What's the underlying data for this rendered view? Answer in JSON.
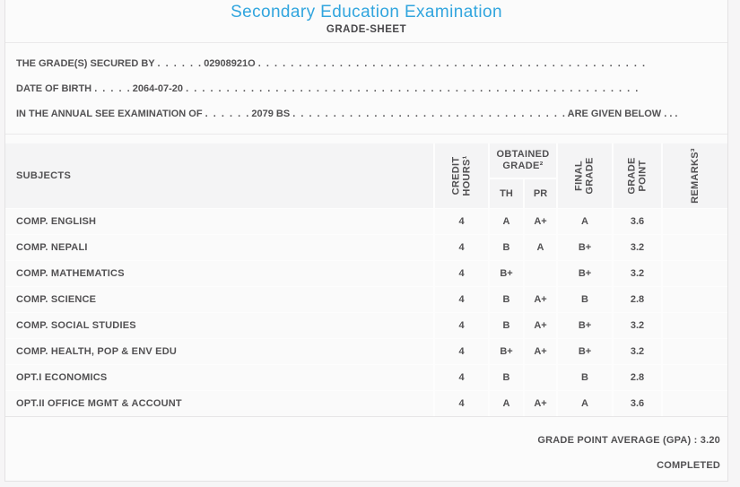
{
  "page": {
    "title": "Secondary Education Examination",
    "subtitle": "GRADE-SHEET"
  },
  "colors": {
    "accent_blue": "#31a5de",
    "text": "#525153",
    "panel_bg": "#fbfbfb",
    "header_cell_bg": "#f4f4f5",
    "row_bg": "#fafafa"
  },
  "info": {
    "lines": [
      {
        "label": "THE GRADE(S) SECURED BY",
        "leader1": ". . . . . .",
        "value": "02908921O",
        "leader2": ". . . . . . . . . . . . . . . . . . . . . . . . . . . . . . . . . . . . . . . . . . . . . . . .",
        "suffix": ""
      },
      {
        "label": "DATE OF BIRTH",
        "leader1": ". . . . .",
        "value": "2064-07-20",
        "leader2": ". . . . . . . . . . . . . . . . . . . . . . . . . . . . . . . . . . . . . . . . . . . . . . . . . . . . . . . .",
        "suffix": ""
      },
      {
        "label": "IN THE ANNUAL SEE EXAMINATION OF",
        "leader1": ". . . . . .",
        "value": "2079 BS",
        "leader2": ". . . . . . . . . . . . . . . . . . . . . . . . . . . . . . . . . .",
        "suffix": "ARE GIVEN BELOW . . ."
      }
    ]
  },
  "table": {
    "headers": {
      "subjects": "SUBJECTS",
      "credit_hours": {
        "line1": "CREDIT",
        "line2": "HOURS¹"
      },
      "obtained_grade": {
        "line1": "OBTAINED",
        "line2": "GRADE²",
        "sub_th": "TH",
        "sub_pr": "PR"
      },
      "final_grade": {
        "line1": "FINAL",
        "line2": "GRADE"
      },
      "grade_point": {
        "line1": "GRADE",
        "line2": "POINT"
      },
      "remarks": "REMARKS³"
    },
    "rows": [
      {
        "subject": "COMP. ENGLISH",
        "credit": "4",
        "th": "A",
        "pr": "A+",
        "final": "A",
        "gp": "3.6",
        "remarks": ""
      },
      {
        "subject": "COMP. NEPALI",
        "credit": "4",
        "th": "B",
        "pr": "A",
        "final": "B+",
        "gp": "3.2",
        "remarks": ""
      },
      {
        "subject": "COMP. MATHEMATICS",
        "credit": "4",
        "th": "B+",
        "pr": "",
        "final": "B+",
        "gp": "3.2",
        "remarks": ""
      },
      {
        "subject": "COMP. SCIENCE",
        "credit": "4",
        "th": "B",
        "pr": "A+",
        "final": "B",
        "gp": "2.8",
        "remarks": ""
      },
      {
        "subject": "COMP. SOCIAL STUDIES",
        "credit": "4",
        "th": "B",
        "pr": "A+",
        "final": "B+",
        "gp": "3.2",
        "remarks": ""
      },
      {
        "subject": "COMP. HEALTH, POP & ENV EDU",
        "credit": "4",
        "th": "B+",
        "pr": "A+",
        "final": "B+",
        "gp": "3.2",
        "remarks": ""
      },
      {
        "subject": "OPT.I ECONOMICS",
        "credit": "4",
        "th": "B",
        "pr": "",
        "final": "B",
        "gp": "2.8",
        "remarks": ""
      },
      {
        "subject": "OPT.II OFFICE MGMT & ACCOUNT",
        "credit": "4",
        "th": "A",
        "pr": "A+",
        "final": "A",
        "gp": "3.6",
        "remarks": ""
      }
    ]
  },
  "footer": {
    "gpa_line": "GRADE POINT AVERAGE (GPA) : 3.20",
    "status": "COMPLETED"
  }
}
